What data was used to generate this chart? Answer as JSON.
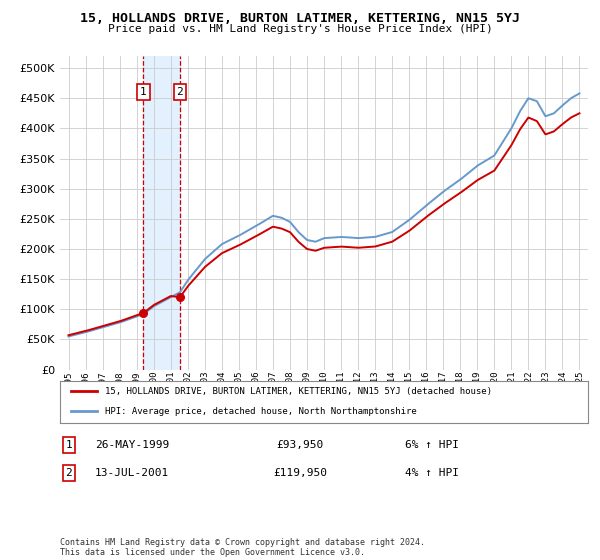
{
  "title": "15, HOLLANDS DRIVE, BURTON LATIMER, KETTERING, NN15 5YJ",
  "subtitle": "Price paid vs. HM Land Registry's House Price Index (HPI)",
  "legend_line1": "15, HOLLANDS DRIVE, BURTON LATIMER, KETTERING, NN15 5YJ (detached house)",
  "legend_line2": "HPI: Average price, detached house, North Northamptonshire",
  "transaction1_date": "26-MAY-1999",
  "transaction1_price": "£93,950",
  "transaction1_hpi": "6% ↑ HPI",
  "transaction1_year": 1999.4,
  "transaction1_value": 93950,
  "transaction2_date": "13-JUL-2001",
  "transaction2_price": "£119,950",
  "transaction2_hpi": "4% ↑ HPI",
  "transaction2_year": 2001.54,
  "transaction2_value": 119950,
  "footer": "Contains HM Land Registry data © Crown copyright and database right 2024.\nThis data is licensed under the Open Government Licence v3.0.",
  "hpi_color": "#6699cc",
  "price_color": "#cc0000",
  "background_color": "#ffffff",
  "grid_color": "#cccccc",
  "ylim": [
    0,
    520000
  ],
  "xlim_start": 1994.5,
  "xlim_end": 2025.5
}
